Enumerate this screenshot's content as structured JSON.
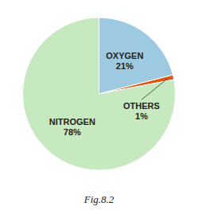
{
  "chart_data": {
    "type": "pie",
    "title": "Fig.8.2",
    "categories": [
      "OXYGEN",
      "OTHERS",
      "NITROGEN"
    ],
    "values": [
      21,
      1,
      78
    ],
    "value_labels": [
      "21%",
      "1%",
      "78%"
    ],
    "colors": [
      "#9ecae1",
      "#e6550d",
      "#c7e9c0"
    ],
    "data_labels": true
  }
}
